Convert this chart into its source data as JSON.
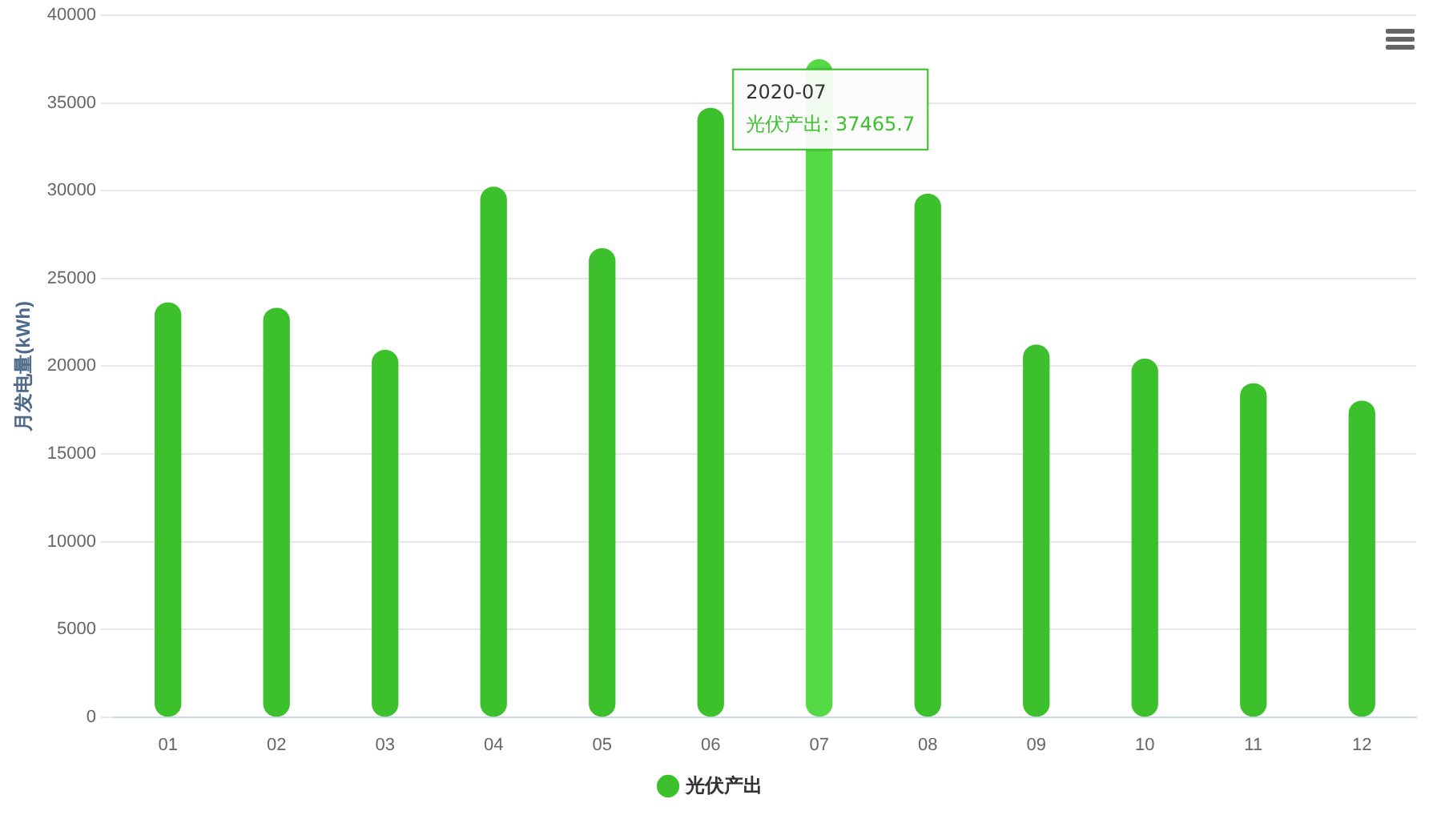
{
  "chart_data": {
    "type": "bar",
    "ylabel": "月发电量(kWh)",
    "categories": [
      "01",
      "02",
      "03",
      "04",
      "05",
      "06",
      "07",
      "08",
      "09",
      "10",
      "11",
      "12"
    ],
    "series": [
      {
        "name": "光伏产出",
        "color": "#3cc12c",
        "colors": [
          "#3cc12c",
          "#3cc12c",
          "#3cc12c",
          "#3cc12c",
          "#3cc12c",
          "#3cc12c",
          "#55d945",
          "#3cc12c",
          "#3cc12c",
          "#3cc12c",
          "#3cc12c",
          "#3cc12c"
        ],
        "values": [
          23600,
          23300,
          20900,
          30200,
          26700,
          34700,
          37465.7,
          29800,
          21200,
          20400,
          19000,
          18000
        ]
      }
    ],
    "ylim": [
      0,
      40000
    ],
    "yticks": [
      0,
      5000,
      10000,
      15000,
      20000,
      25000,
      30000,
      35000,
      40000
    ],
    "grid": "y",
    "legend": "bottom",
    "annotations": [
      {
        "text": "2020-07\n光伏产出: 37465.7",
        "x": "07",
        "y": 37465.7
      }
    ]
  }
}
